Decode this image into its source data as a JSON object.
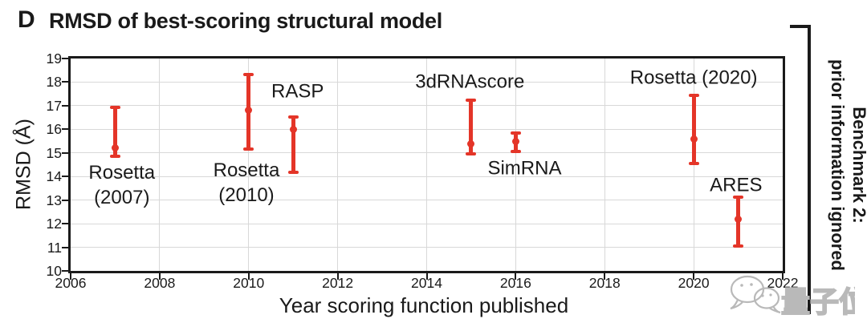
{
  "panel_label": "D",
  "title": "RMSD of best-scoring structural model",
  "side_annotation": {
    "line1": "Benchmark 2:",
    "line2": "prior information ignored"
  },
  "watermark": {
    "brand_text": "量子位",
    "icon": "wechat-bubbles-icon",
    "color": "#b9b9b9"
  },
  "chart_data": {
    "type": "scatter",
    "title": "RMSD of best-scoring structural model",
    "xlabel": "Year scoring function published",
    "ylabel": "RMSD (Å)",
    "xlim": [
      2006,
      2022
    ],
    "ylim": [
      10,
      19
    ],
    "x_ticks": [
      2006,
      2008,
      2010,
      2012,
      2014,
      2016,
      2018,
      2020,
      2022
    ],
    "y_ticks": [
      10,
      11,
      12,
      13,
      14,
      15,
      16,
      17,
      18,
      19
    ],
    "grid": true,
    "marker_color": "#e43528",
    "axis_color": "#1a1a1a",
    "grid_color": "#d8d8d8",
    "series": [
      {
        "name": "Rosetta (2007)",
        "x": 2007,
        "y": 15.2,
        "y_upper": 17.0,
        "y_lower": 14.8,
        "label_lines": [
          "Rosetta",
          "(2007)"
        ],
        "label_x": 2007.15,
        "label_y": 13.65
      },
      {
        "name": "Rosetta (2010)",
        "x": 2010,
        "y": 16.8,
        "y_upper": 18.4,
        "y_lower": 15.1,
        "label_lines": [
          "Rosetta",
          "(2010)"
        ],
        "label_x": 2009.95,
        "label_y": 13.75
      },
      {
        "name": "RASP",
        "x": 2011,
        "y": 16.0,
        "y_upper": 16.6,
        "y_lower": 14.1,
        "label_lines": [
          "RASP"
        ],
        "label_x": 2011.1,
        "label_y": 17.6
      },
      {
        "name": "3dRNAscore",
        "x": 2015,
        "y": 15.4,
        "y_upper": 17.3,
        "y_lower": 14.9,
        "label_lines": [
          "3dRNAscore"
        ],
        "label_x": 2014.97,
        "label_y": 18.0
      },
      {
        "name": "SimRNA",
        "x": 2016,
        "y": 15.5,
        "y_upper": 15.9,
        "y_lower": 15.0,
        "label_lines": [
          "SimRNA"
        ],
        "label_x": 2016.2,
        "label_y": 14.35
      },
      {
        "name": "Rosetta (2020)",
        "x": 2020,
        "y": 15.6,
        "y_upper": 17.5,
        "y_lower": 14.5,
        "label_lines": [
          "Rosetta (2020)"
        ],
        "label_x": 2020.0,
        "label_y": 18.2
      },
      {
        "name": "ARES",
        "x": 2021,
        "y": 12.2,
        "y_upper": 13.2,
        "y_lower": 11.0,
        "label_lines": [
          "ARES"
        ],
        "label_x": 2020.95,
        "label_y": 13.65
      }
    ]
  }
}
